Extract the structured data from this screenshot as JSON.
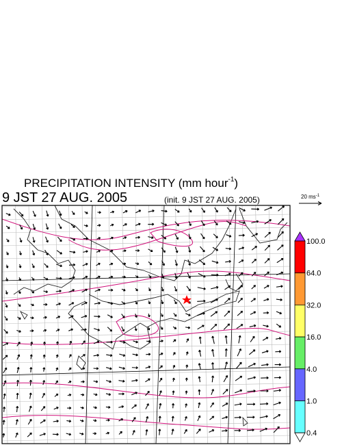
{
  "header": {
    "title": "PRECIPITATION INTENSITY (mm hour",
    "title_exponent": "-1",
    "title_close": ")",
    "valid_time": "9 JST 27 AUG. 2005",
    "init_time": "(init. 9 JST 27 AUG. 2005)"
  },
  "vector_legend": {
    "label": "20 ms",
    "exponent": "-1"
  },
  "colorbar": {
    "labels": [
      "100.0",
      "64.0",
      "32.0",
      "16.0",
      "4.0",
      "1.0",
      "0.4"
    ],
    "colors": [
      "#ff0000",
      "#ff9933",
      "#ffff66",
      "#66ee66",
      "#6666ff",
      "#66ffff"
    ],
    "over_color": "#aa33ff",
    "under_color": "#ffffff"
  }
}
